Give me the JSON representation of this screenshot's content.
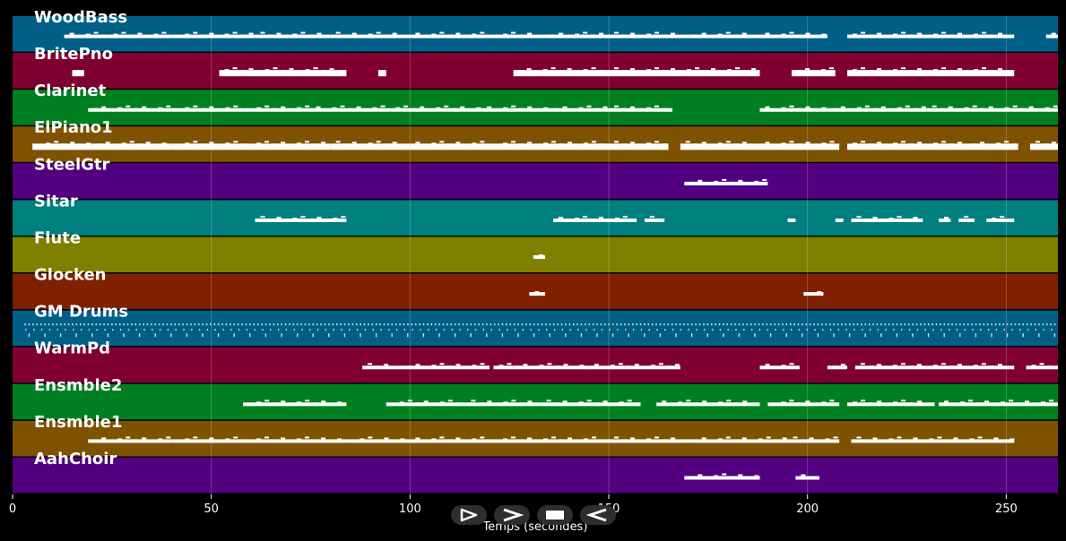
{
  "chart_data": {
    "type": "piano-roll",
    "title": "",
    "xlabel": "Temps (secondes)",
    "ylabel": "",
    "xlim": [
      0,
      263
    ],
    "xticks": [
      0,
      50,
      100,
      150,
      200,
      250
    ],
    "grid": true,
    "tracks": [
      {
        "name": "WoodBass",
        "color": "#005f87",
        "segments": [
          [
            13,
            24
          ],
          [
            24,
            40
          ],
          [
            40,
            52
          ],
          [
            52,
            61
          ],
          [
            61,
            80
          ],
          [
            80,
            100
          ],
          [
            100,
            120
          ],
          [
            120,
            134
          ],
          [
            134,
            150
          ],
          [
            150,
            170
          ],
          [
            170,
            188
          ],
          [
            188,
            205
          ],
          [
            210,
            252
          ],
          [
            260,
            263
          ]
        ]
      },
      {
        "name": "BritePno",
        "color": "#7f0030",
        "segments": [
          [
            15,
            18
          ],
          [
            52,
            84
          ],
          [
            92,
            94
          ],
          [
            126,
            150
          ],
          [
            150,
            188
          ],
          [
            196,
            207
          ],
          [
            210,
            252
          ]
        ]
      },
      {
        "name": "Clarinet",
        "color": "#007f20",
        "segments": [
          [
            19,
            40
          ],
          [
            40,
            58
          ],
          [
            58,
            75
          ],
          [
            75,
            95
          ],
          [
            95,
            118
          ],
          [
            118,
            135
          ],
          [
            135,
            150
          ],
          [
            150,
            166
          ],
          [
            188,
            205
          ],
          [
            205,
            230
          ],
          [
            230,
            263
          ]
        ]
      },
      {
        "name": "ElPiano1",
        "color": "#7f5200",
        "segments": [
          [
            5,
            20
          ],
          [
            20,
            40
          ],
          [
            40,
            60
          ],
          [
            60,
            80
          ],
          [
            80,
            100
          ],
          [
            100,
            120
          ],
          [
            120,
            150
          ],
          [
            150,
            165
          ],
          [
            168,
            188
          ],
          [
            188,
            208
          ],
          [
            210,
            240
          ],
          [
            240,
            253
          ],
          [
            256,
            263
          ]
        ]
      },
      {
        "name": "SteelGtr",
        "color": "#52007f",
        "segments": [
          [
            169,
            190
          ]
        ]
      },
      {
        "name": "Sitar",
        "color": "#007f7f",
        "segments": [
          [
            61,
            84
          ],
          [
            136,
            157
          ],
          [
            159,
            164
          ],
          [
            195,
            197
          ],
          [
            207,
            209
          ],
          [
            211,
            229
          ],
          [
            233,
            236
          ],
          [
            238,
            242
          ],
          [
            245,
            252
          ]
        ]
      },
      {
        "name": "Flute",
        "color": "#7f7f00",
        "segments": [
          [
            131,
            134
          ]
        ]
      },
      {
        "name": "Glocken",
        "color": "#7f2000",
        "segments": [
          [
            130,
            134
          ],
          [
            199,
            204
          ]
        ]
      },
      {
        "name": "GM Drums",
        "color": "#005f87",
        "segments": [
          [
            3,
            263
          ]
        ]
      },
      {
        "name": "WarmPd",
        "color": "#7f0030",
        "segments": [
          [
            88,
            98
          ],
          [
            98,
            120
          ],
          [
            121,
            145
          ],
          [
            145,
            168
          ],
          [
            188,
            198
          ],
          [
            205,
            210
          ],
          [
            212,
            252
          ],
          [
            255,
            263
          ]
        ]
      },
      {
        "name": "Ensmble2",
        "color": "#007f20",
        "segments": [
          [
            58,
            84
          ],
          [
            94,
            114
          ],
          [
            114,
            133
          ],
          [
            133,
            158
          ],
          [
            162,
            188
          ],
          [
            190,
            208
          ],
          [
            210,
            232
          ],
          [
            233,
            263
          ]
        ]
      },
      {
        "name": "Ensmble1",
        "color": "#7f5200",
        "segments": [
          [
            19,
            40
          ],
          [
            40,
            60
          ],
          [
            60,
            84
          ],
          [
            84,
            100
          ],
          [
            100,
            120
          ],
          [
            120,
            150
          ],
          [
            150,
            170
          ],
          [
            170,
            195
          ],
          [
            195,
            208
          ],
          [
            211,
            252
          ]
        ]
      },
      {
        "name": "AahChoir",
        "color": "#52007f",
        "segments": [
          [
            169,
            188
          ],
          [
            197,
            203
          ]
        ]
      }
    ]
  },
  "controls": {
    "items": [
      {
        "name": "play-outline",
        "icon": "play-outline-icon"
      },
      {
        "name": "forward",
        "icon": "forward-icon"
      },
      {
        "name": "stop",
        "icon": "stop-icon"
      },
      {
        "name": "rewind",
        "icon": "rewind-icon"
      }
    ]
  }
}
